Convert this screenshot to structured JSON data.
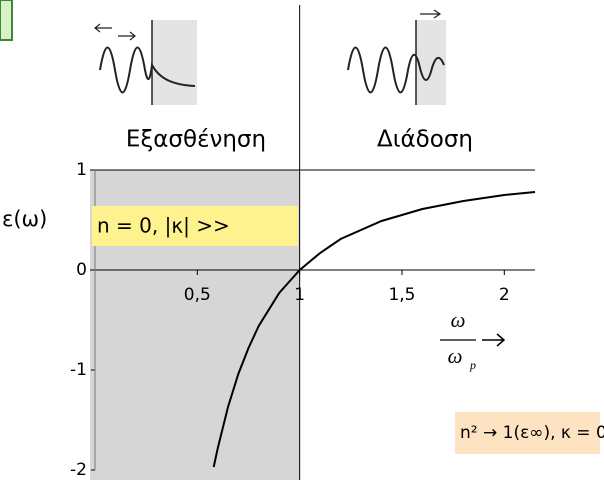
{
  "chart_data": {
    "type": "line",
    "y_label": "ε(ω)",
    "region_labels": [
      "Εξασθένηση",
      "Διάδοση"
    ],
    "x_label_numerator": "ω",
    "x_label_denominator": "ω",
    "x_label_subscript": "p",
    "annotations": [
      "n = 0,  |κ| >>",
      "n² → 1(ε∞), κ = 0"
    ],
    "x": [
      0.58,
      0.6,
      0.65,
      0.7,
      0.75,
      0.8,
      0.9,
      1,
      1.1,
      1.2,
      1.4,
      1.6,
      1.8,
      2.0,
      2.15
    ],
    "values": [
      -1.97,
      -1.78,
      -1.37,
      -1.04,
      -0.78,
      -0.56,
      -0.23,
      0,
      0.17,
      0.31,
      0.49,
      0.61,
      0.69,
      0.75,
      0.78
    ],
    "color": "#000000",
    "xlim": [
      0,
      2.15
    ],
    "ylim": [
      -2,
      1
    ],
    "xticks": [
      {
        "value": 0.5,
        "label": "0,5"
      },
      1,
      {
        "value": 1.5,
        "label": "1,5"
      },
      2
    ],
    "yticks": [
      1,
      0,
      -1,
      -2
    ]
  }
}
